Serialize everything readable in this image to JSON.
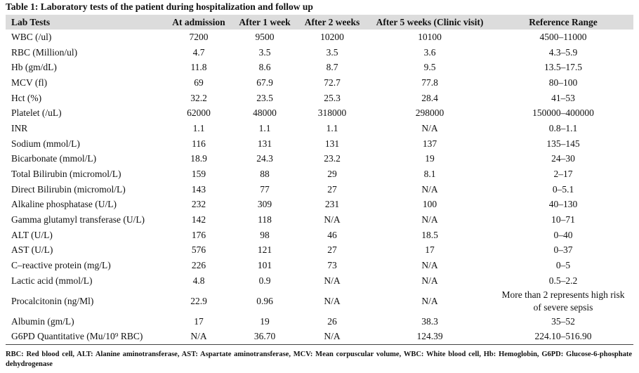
{
  "title": "Table 1: Laboratory tests of the patient during hospitalization and follow up",
  "table": {
    "header": [
      "Lab Tests",
      "At admission",
      "After 1 week",
      "After 2 weeks",
      "After 5 weeks (Clinic visit)",
      "Reference Range"
    ],
    "rows": [
      [
        "WBC (/ul)",
        "7200",
        "9500",
        "10200",
        "10100",
        "4500–11000"
      ],
      [
        "RBC (Million/ul)",
        "4.7",
        "3.5",
        "3.5",
        "3.6",
        "4.3–5.9"
      ],
      [
        "Hb (gm/dL)",
        "11.8",
        "8.6",
        "8.7",
        "9.5",
        "13.5–17.5"
      ],
      [
        "MCV (fl)",
        "69",
        "67.9",
        "72.7",
        "77.8",
        "80–100"
      ],
      [
        "Hct (%)",
        "32.2",
        "23.5",
        "25.3",
        "28.4",
        "41–53"
      ],
      [
        "Platelet (/uL)",
        "62000",
        "48000",
        "318000",
        "298000",
        "150000–400000"
      ],
      [
        "INR",
        "1.1",
        "1.1",
        "1.1",
        "N/A",
        "0.8–1.1"
      ],
      [
        "Sodium (mmol/L)",
        "116",
        "131",
        "131",
        "137",
        "135–145"
      ],
      [
        "Bicarbonate (mmol/L)",
        "18.9",
        "24.3",
        "23.2",
        "19",
        "24–30"
      ],
      [
        "Total Bilirubin (micromol/L)",
        "159",
        "88",
        "29",
        "8.1",
        "2–17"
      ],
      [
        "Direct Bilirubin (micromol/L)",
        "143",
        "77",
        "27",
        "N/A",
        "0–5.1"
      ],
      [
        "Alkaline phosphatase (U/L)",
        "232",
        "309",
        "231",
        "100",
        "40–130"
      ],
      [
        "Gamma glutamyl transferase (U/L)",
        "142",
        "118",
        "N/A",
        "N/A",
        "10–71"
      ],
      [
        "ALT (U/L)",
        "176",
        "98",
        "46",
        "18.5",
        "0–40"
      ],
      [
        "AST (U/L)",
        "576",
        "121",
        "27",
        "17",
        "0–37"
      ],
      [
        "C–reactive protein (mg/L)",
        "226",
        "101",
        "73",
        "N/A",
        "0–5"
      ],
      [
        "Lactic acid (mmol/L)",
        "4.8",
        "0.9",
        "N/A",
        "N/A",
        "0.5–2.2"
      ],
      [
        "Procalcitonin (ng/Ml)",
        "22.9",
        "0.96",
        "N/A",
        "N/A",
        "More than 2 represents high risk of severe sepsis"
      ],
      [
        "Albumin (gm/L)",
        "17",
        "19",
        "26",
        "38.3",
        "35–52"
      ],
      [
        "G6PD Quantitative (Mu/10⁹ RBC)",
        "N/A",
        "36.70",
        "N/A",
        "124.39",
        "224.10–516.90"
      ]
    ]
  },
  "footnote": "RBC: Red blood cell, ALT: Alanine aminotransferase, AST: Aspartate aminotransferase, MCV: Mean corpuscular volume, WBC: White blood cell, Hb: Hemoglobin, G6PD: Glucose-6-phosphate dehydrogenase"
}
